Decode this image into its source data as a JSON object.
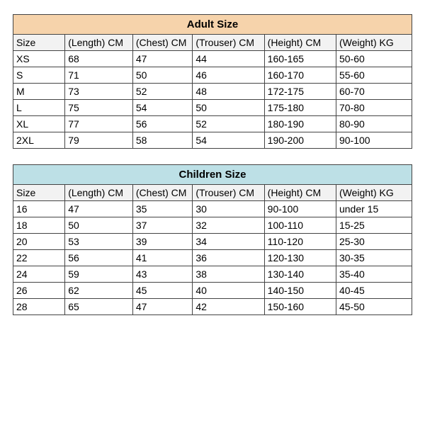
{
  "adult": {
    "title": "Adult Size",
    "title_bg": "#f6d3ab",
    "columns": [
      "Size",
      "(Length) CM",
      "(Chest) CM",
      "(Trouser) CM",
      "(Height) CM",
      "(Weight) KG"
    ],
    "rows": [
      [
        "XS",
        "68",
        "47",
        "44",
        "160-165",
        "50-60"
      ],
      [
        "S",
        "71",
        "50",
        "46",
        "160-170",
        "55-60"
      ],
      [
        "M",
        "73",
        "52",
        "48",
        "172-175",
        "60-70"
      ],
      [
        "L",
        "75",
        "54",
        "50",
        "175-180",
        "70-80"
      ],
      [
        "XL",
        "77",
        "56",
        "52",
        "180-190",
        "80-90"
      ],
      [
        "2XL",
        "79",
        "58",
        "54",
        "190-200",
        "90-100"
      ]
    ]
  },
  "children": {
    "title": "Children Size",
    "title_bg": "#bde0e6",
    "columns": [
      "Size",
      "(Length) CM",
      "(Chest) CM",
      "(Trouser) CM",
      "(Height) CM",
      "(Weight) KG"
    ],
    "rows": [
      [
        "16",
        "47",
        "35",
        "30",
        "90-100",
        "under 15"
      ],
      [
        "18",
        "50",
        "37",
        "32",
        "100-110",
        "15-25"
      ],
      [
        "20",
        "53",
        "39",
        "34",
        "110-120",
        "25-30"
      ],
      [
        "22",
        "56",
        "41",
        "36",
        "120-130",
        "30-35"
      ],
      [
        "24",
        "59",
        "43",
        "38",
        "130-140",
        "35-40"
      ],
      [
        "26",
        "62",
        "45",
        "40",
        "140-150",
        "40-45"
      ],
      [
        "28",
        "65",
        "47",
        "42",
        "150-160",
        "45-50"
      ]
    ]
  },
  "style": {
    "border_color": "#444444",
    "header_row_bg": "#f2f2f2",
    "body_bg": "#ffffff",
    "font_family": "Arial",
    "cell_fontsize": 14,
    "title_fontsize": 15,
    "col_widths_pct": [
      13,
      17,
      15,
      18,
      18,
      19
    ]
  }
}
